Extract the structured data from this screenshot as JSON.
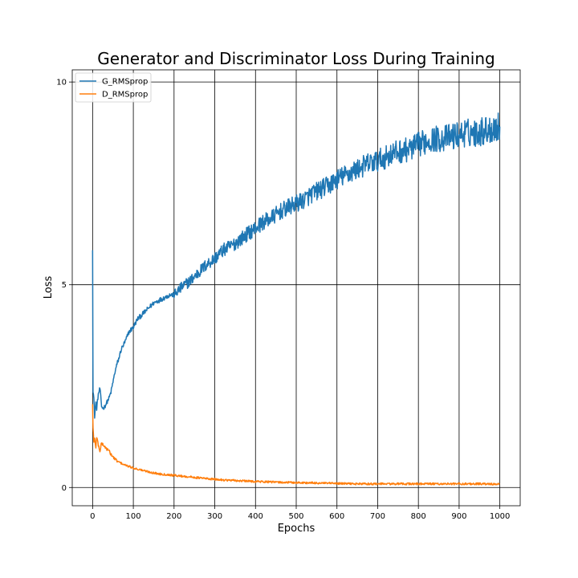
{
  "chart_data": {
    "type": "line",
    "title": "Generator and Discriminator Loss During Training",
    "xlabel": "Epochs",
    "ylabel": "Loss",
    "xlim": [
      -50,
      1050
    ],
    "ylim": [
      -0.45,
      10.3
    ],
    "xticks": [
      0,
      100,
      200,
      300,
      400,
      500,
      600,
      700,
      800,
      900,
      1000
    ],
    "xtick_labels": [
      "0",
      "100",
      "200",
      "300",
      "400",
      "500",
      "600",
      "700",
      "800",
      "900",
      "1000"
    ],
    "yticks": [
      0,
      5,
      10
    ],
    "ytick_labels": [
      "0",
      "5",
      "10"
    ],
    "grid": true,
    "legend_position": "upper-left",
    "series": [
      {
        "name": "G_RMSprop",
        "color": "#1f77b4",
        "x": [
          0,
          1,
          3,
          5,
          8,
          10,
          14,
          18,
          22,
          26,
          30,
          35,
          40,
          45,
          50,
          55,
          60,
          65,
          70,
          80,
          90,
          100,
          110,
          120,
          130,
          140,
          150,
          160,
          170,
          180,
          190,
          200,
          220,
          240,
          260,
          280,
          300,
          320,
          340,
          360,
          380,
          400,
          420,
          440,
          460,
          480,
          500,
          520,
          540,
          560,
          580,
          600,
          620,
          640,
          660,
          680,
          700,
          720,
          740,
          760,
          780,
          800,
          820,
          840,
          860,
          880,
          900,
          920,
          940,
          960,
          980,
          1000
        ],
        "y": [
          5.9,
          2.4,
          2.2,
          1.75,
          2.1,
          1.95,
          2.3,
          2.45,
          2.0,
          1.95,
          2.0,
          2.1,
          2.2,
          2.35,
          2.6,
          2.85,
          3.05,
          3.2,
          3.4,
          3.6,
          3.85,
          3.95,
          4.15,
          4.25,
          4.35,
          4.45,
          4.55,
          4.6,
          4.65,
          4.7,
          4.75,
          4.75,
          4.95,
          5.1,
          5.3,
          5.5,
          5.65,
          5.85,
          5.95,
          6.1,
          6.25,
          6.4,
          6.55,
          6.65,
          6.8,
          6.9,
          7.0,
          7.1,
          7.25,
          7.35,
          7.45,
          7.6,
          7.7,
          7.8,
          7.9,
          8.0,
          8.05,
          8.15,
          8.25,
          8.3,
          8.35,
          8.45,
          8.55,
          8.6,
          8.6,
          8.65,
          8.7,
          8.75,
          8.75,
          8.8,
          8.85,
          8.9
        ]
      },
      {
        "name": "D_RMSprop",
        "color": "#ff7f0e",
        "x": [
          0,
          1,
          3,
          5,
          8,
          10,
          14,
          18,
          22,
          26,
          30,
          35,
          40,
          50,
          60,
          70,
          80,
          100,
          120,
          140,
          160,
          180,
          200,
          230,
          260,
          300,
          350,
          400,
          450,
          500,
          550,
          600,
          650,
          700,
          750,
          800,
          850,
          900,
          950,
          1000
        ],
        "y": [
          2.05,
          1.5,
          1.1,
          1.2,
          1.0,
          1.25,
          1.05,
          0.9,
          1.1,
          1.05,
          1.0,
          0.95,
          0.9,
          0.75,
          0.65,
          0.6,
          0.55,
          0.48,
          0.43,
          0.38,
          0.34,
          0.32,
          0.3,
          0.27,
          0.24,
          0.2,
          0.17,
          0.15,
          0.13,
          0.12,
          0.11,
          0.1,
          0.09,
          0.09,
          0.09,
          0.09,
          0.09,
          0.09,
          0.09,
          0.08
        ]
      }
    ]
  }
}
